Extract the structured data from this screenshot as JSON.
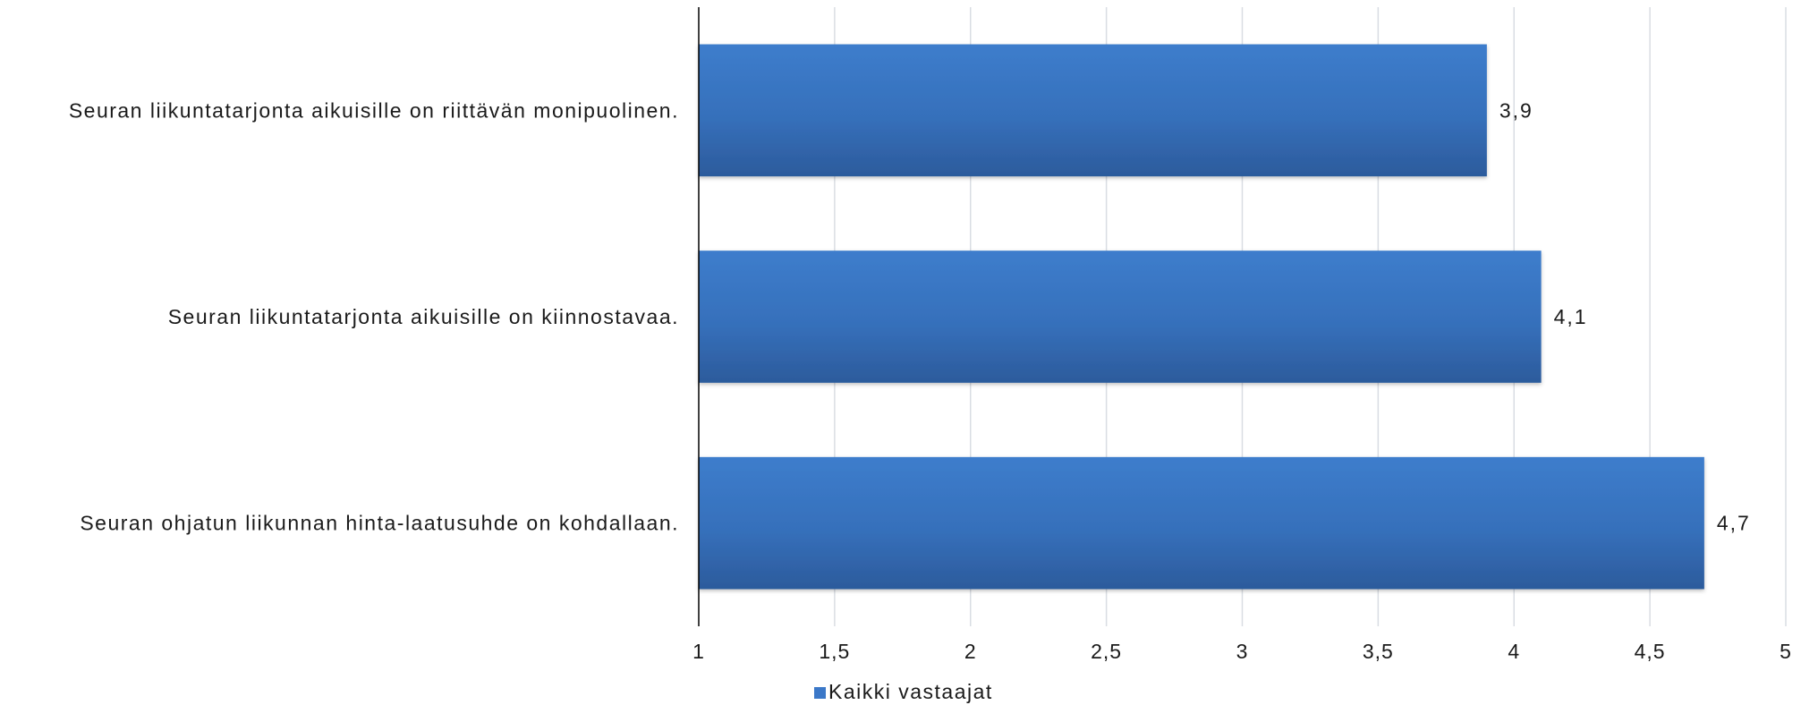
{
  "chart_data": {
    "type": "bar",
    "orientation": "horizontal",
    "categories": [
      "Seuran liikuntatarjonta aikuisille on riittävän monipuolinen.",
      "Seuran liikuntatarjonta aikuisille on kiinnostavaa.",
      "Seuran ohjatun liikunnan hinta-laatusuhde on kohdallaan."
    ],
    "series": [
      {
        "name": "Kaikki vastaajat",
        "values": [
          3.9,
          4.1,
          4.7
        ],
        "value_labels": [
          "3,9",
          "4,1",
          "4,7"
        ],
        "color": "#3b78c8"
      }
    ],
    "xlim": [
      1,
      5
    ],
    "x_ticks": [
      1,
      1.5,
      2,
      2.5,
      3,
      3.5,
      4,
      4.5,
      5
    ],
    "x_tick_labels": [
      "1",
      "1,5",
      "2",
      "2,5",
      "3",
      "3,5",
      "4",
      "4,5",
      "5"
    ],
    "grid": true,
    "legend": "bottom",
    "title": "",
    "xlabel": "",
    "ylabel": ""
  }
}
